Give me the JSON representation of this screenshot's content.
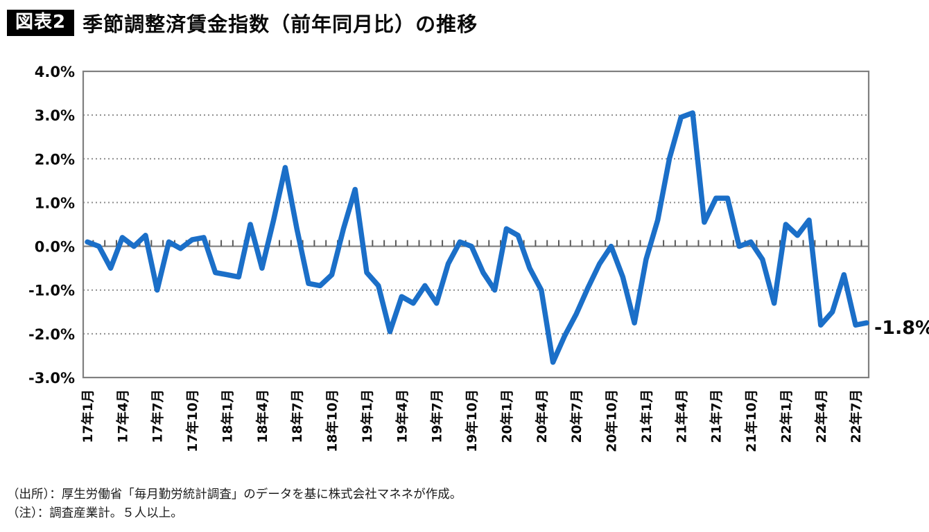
{
  "header": {
    "badge": "図表2",
    "title": "季節調整済賃金指数（前年同月比）の推移"
  },
  "chart_data": {
    "type": "line",
    "title": "季節調整済賃金指数（前年同月比）の推移",
    "x_start": "17年1月",
    "x_end": "22年8月",
    "x_freq": "monthly",
    "series": [
      {
        "name": "季節調整済賃金指数（前年同月比）",
        "color": "#1b6fc8",
        "values": [
          0.1,
          0.0,
          -0.5,
          0.2,
          0.0,
          0.25,
          -1.0,
          0.1,
          -0.05,
          0.15,
          0.2,
          -0.6,
          -0.65,
          -0.7,
          0.5,
          -0.5,
          0.6,
          1.8,
          0.4,
          -0.85,
          -0.9,
          -0.65,
          0.4,
          1.3,
          -0.6,
          -0.9,
          -1.95,
          -1.15,
          -1.3,
          -0.9,
          -1.3,
          -0.4,
          0.1,
          0.0,
          -0.6,
          -1.0,
          0.4,
          0.25,
          -0.5,
          -1.0,
          -2.65,
          -2.05,
          -1.55,
          -0.95,
          -0.4,
          0.0,
          -0.7,
          -1.75,
          -0.3,
          0.6,
          2.0,
          2.95,
          3.05,
          0.55,
          1.1,
          1.1,
          0.0,
          0.1,
          -0.3,
          -1.3,
          0.5,
          0.25,
          0.6,
          -1.8,
          -1.5,
          -0.65,
          -1.8,
          -1.75
        ]
      }
    ],
    "x_tick_labels": [
      "17年1月",
      "17年4月",
      "17年7月",
      "17年10月",
      "18年1月",
      "18年4月",
      "18年7月",
      "18年10月",
      "19年1月",
      "19年4月",
      "19年7月",
      "19年10月",
      "20年1月",
      "20年4月",
      "20年7月",
      "20年10月",
      "21年1月",
      "21年4月",
      "21年7月",
      "21年10月",
      "22年1月",
      "22年4月",
      "22年7月"
    ],
    "x_tick_every": 3,
    "y_ticks": [
      {
        "label": "4.0%",
        "value": 4
      },
      {
        "label": "3.0%",
        "value": 3
      },
      {
        "label": "2.0%",
        "value": 2
      },
      {
        "label": "1.0%",
        "value": 1
      },
      {
        "label": "0.0%",
        "value": 0
      },
      {
        "label": "-1.0%",
        "value": -1
      },
      {
        "label": "-2.0%",
        "value": -2
      },
      {
        "label": "-3.0%",
        "value": -3
      }
    ],
    "ylim": [
      -3,
      4
    ],
    "grid": "dotted horizontal lines at 1% steps, solid zero axis with monthly ticks",
    "legend": "none",
    "annotation": {
      "text": "-1.8%",
      "value": -1.8,
      "x": "22年8月"
    },
    "colors": {
      "line": "#1b6fc8",
      "axis": "#7f7f7f",
      "tick": "#595959",
      "grid": "#8c8c8c"
    }
  },
  "footnotes": {
    "source": "（出所）：厚生労働省「毎月勤労統計調査」のデータを基に株式会社マネネが作成。",
    "note": "（注）：調査産業計。５人以上。"
  }
}
